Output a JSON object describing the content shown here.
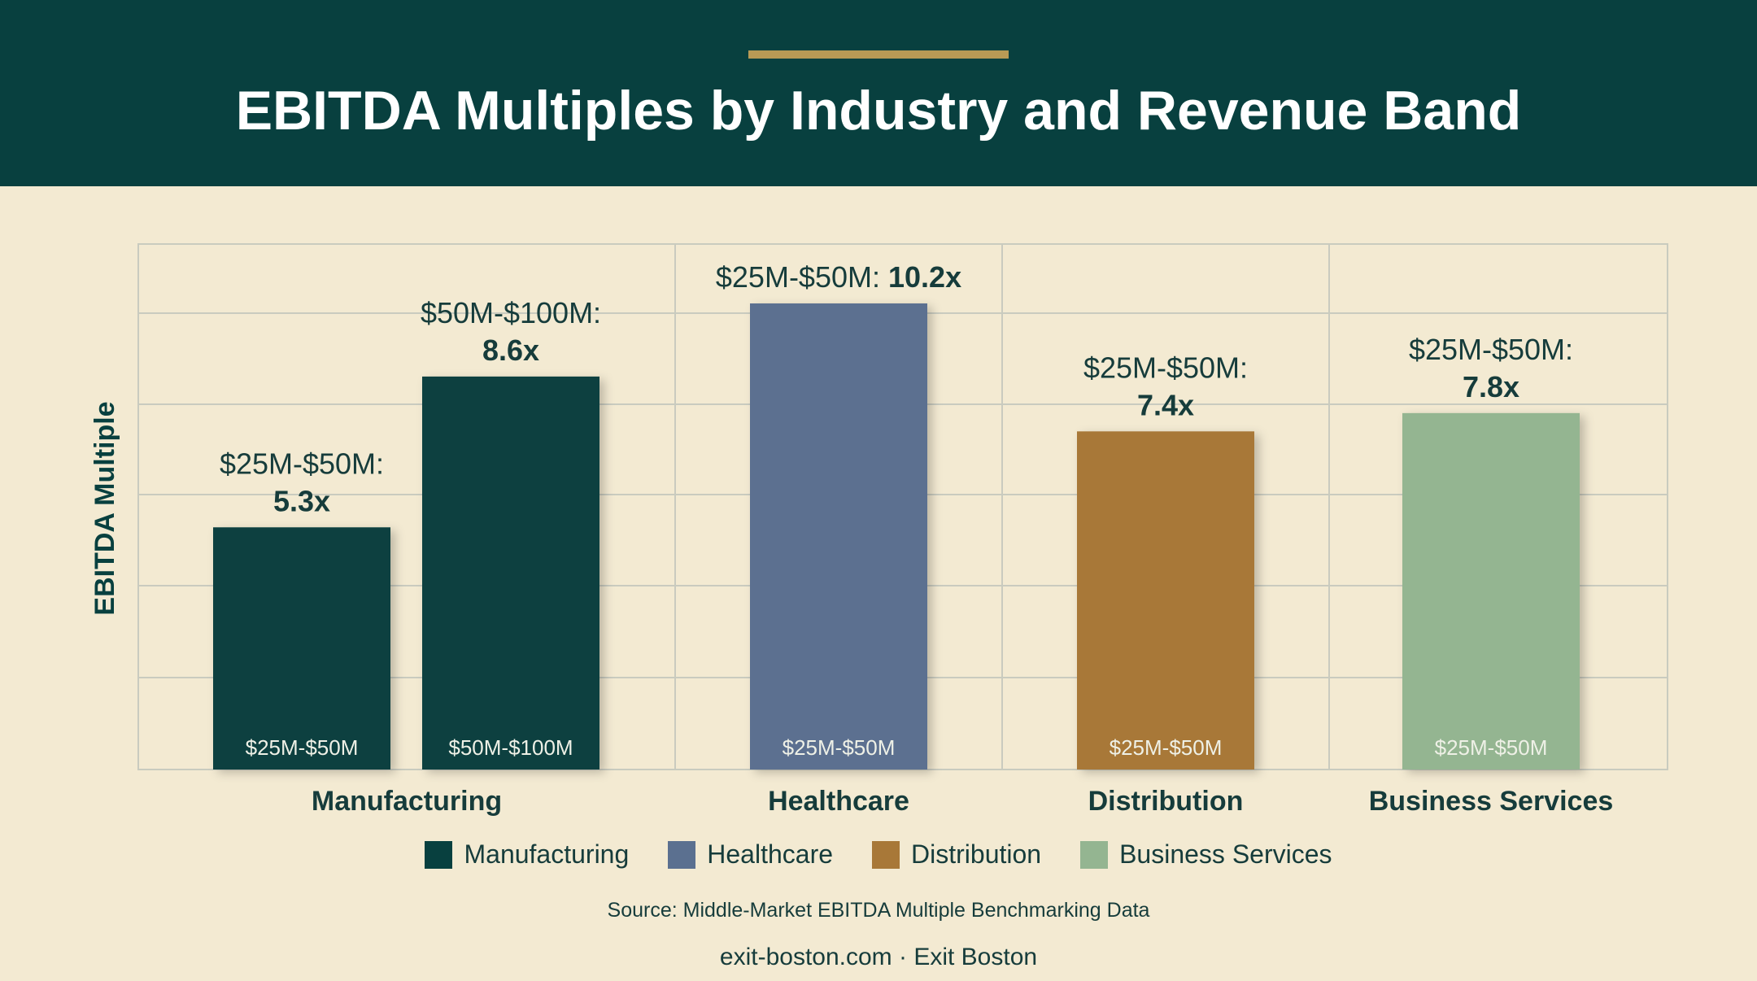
{
  "header": {
    "title": "EBITDA Multiples by Industry and Revenue Band"
  },
  "chart_data": {
    "type": "bar",
    "title": "EBITDA Multiples by Industry and Revenue Band",
    "xlabel": "",
    "ylabel": "EBITDA Multiple",
    "ylim": [
      0,
      11.5
    ],
    "grid": true,
    "categories": [
      "Manufacturing",
      "Healthcare",
      "Distribution",
      "Business Services"
    ],
    "bars": [
      {
        "category": "Manufacturing",
        "band": "$25M-$50M",
        "value": 5.3,
        "label_band": "$25M-$50M:",
        "label_value": "5.3x",
        "color": "#08403f"
      },
      {
        "category": "Manufacturing",
        "band": "$50M-$100M",
        "value": 8.6,
        "label_band": "$50M-$100M:",
        "label_value": "8.6x",
        "color": "#08403f"
      },
      {
        "category": "Healthcare",
        "band": "$25M-$50M",
        "value": 10.2,
        "label_band": "$25M-$50M:",
        "label_value": "10.2x",
        "color": "#5b7090"
      },
      {
        "category": "Distribution",
        "band": "$25M-$50M",
        "value": 7.4,
        "label_band": "$25M-$50M:",
        "label_value": "7.4x",
        "color": "#a87838"
      },
      {
        "category": "Business Services",
        "band": "$25M-$50M",
        "value": 7.8,
        "label_band": "$25M-$50M:",
        "label_value": "7.8x",
        "color": "#94b591"
      }
    ],
    "legend": {
      "placement": "bottom",
      "entries": [
        {
          "name": "Manufacturing",
          "color": "#08403f"
        },
        {
          "name": "Healthcare",
          "color": "#5b7090"
        },
        {
          "name": "Distribution",
          "color": "#a87838"
        },
        {
          "name": "Business Services",
          "color": "#94b591"
        }
      ]
    }
  },
  "footer": {
    "source": "Source: Middle-Market EBITDA Multiple Benchmarking Data",
    "credit": "exit-boston.com · Exit Boston"
  },
  "colors": {
    "header_bg": "#08403f",
    "accent": "#b89a55",
    "page_bg": "#f3ead2",
    "text": "#163c3b"
  }
}
